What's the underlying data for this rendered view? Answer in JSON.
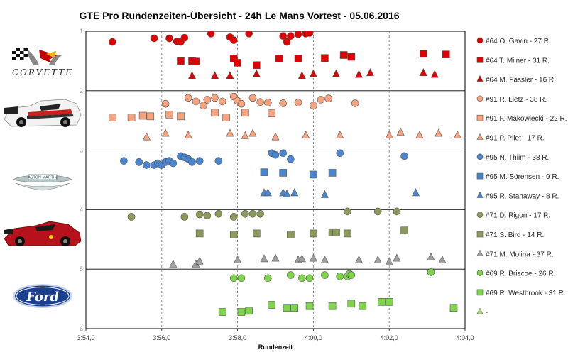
{
  "chart_data": {
    "type": "scatter",
    "title": "GTE Pro Rundenzeiten-Übersicht  - 24h Le Mans Vortest - 05.06.2016",
    "xlabel": "Rundenzeit",
    "ylabel": "",
    "xlim": [
      234,
      244
    ],
    "ylim": [
      1,
      6
    ],
    "x_ticks": [
      234,
      236,
      238,
      240,
      242,
      244
    ],
    "x_tick_labels": [
      "3:54,0",
      "3:56,0",
      "3:58,0",
      "4:00,0",
      "4:02,0",
      "4:04,0"
    ],
    "y_ticks": [
      1,
      2,
      3,
      4,
      5,
      6
    ],
    "y_tick_labels": [
      "1",
      "2",
      "3",
      "4",
      "5",
      "6"
    ],
    "grid": "vertical dashed at ticks, horizontal solid at ticks",
    "legend_position": "right",
    "team_logos": [
      {
        "team": "Corvette",
        "wordmark": "CORVETTE"
      },
      {
        "team": "Porsche",
        "wordmark": ""
      },
      {
        "team": "Aston Martin",
        "wordmark": "ASTON MARTIN"
      },
      {
        "team": "Ferrari",
        "wordmark": ""
      },
      {
        "team": "Ford",
        "wordmark": "Ford"
      }
    ],
    "series": [
      {
        "name": "#64 O. Gavin - 27 R.",
        "color": "#e00000",
        "shape": "circle",
        "x": [
          234.7,
          235.8,
          236.2,
          236.4,
          236.5,
          236.6,
          237.3,
          237.8,
          237.9,
          238.3,
          239.2,
          239.3,
          239.4,
          239.6,
          239.8,
          239.9
        ],
        "y": [
          1.18,
          1.12,
          1.12,
          1.17,
          1.18,
          1.11,
          1.04,
          1.1,
          1.15,
          1.04,
          1.08,
          1.18,
          1.08,
          1.05,
          1.04,
          1.03
        ]
      },
      {
        "name": "#64 T. Milner - 31 R.",
        "color": "#e00000",
        "shape": "square",
        "x": [
          236.5,
          236.8,
          236.9,
          237.9,
          238.0,
          238.5,
          239.1,
          239.6,
          240.3,
          240.8,
          241.0,
          242.9,
          243.5
        ],
        "y": [
          1.5,
          1.5,
          1.51,
          1.46,
          1.53,
          1.57,
          1.46,
          1.46,
          1.45,
          1.4,
          1.43,
          1.38,
          1.39
        ]
      },
      {
        "name": "#64 M. Fässler - 16 R.",
        "color": "#e00000",
        "shape": "triangle",
        "x": [
          236.8,
          237.4,
          237.8,
          238.5,
          239.7,
          240.0,
          240.6,
          241.2,
          241.5,
          242.9,
          243.2
        ],
        "y": [
          1.75,
          1.75,
          1.75,
          1.72,
          1.75,
          1.72,
          1.72,
          1.73,
          1.7,
          1.7,
          1.73
        ]
      },
      {
        "name": "#91 R. Lietz - 38 R.",
        "color": "#f5a47f",
        "shape": "circle",
        "x": [
          236.1,
          236.7,
          236.9,
          237.1,
          237.2,
          237.4,
          237.6,
          237.9,
          238.0,
          238.1,
          238.4,
          238.6,
          238.8,
          239.2,
          239.6,
          240.0,
          240.2,
          240.4,
          241.1
        ],
        "y": [
          2.22,
          2.12,
          2.18,
          2.25,
          2.15,
          2.12,
          2.18,
          2.1,
          2.17,
          2.22,
          2.12,
          2.19,
          2.2,
          2.21,
          2.2,
          2.25,
          2.15,
          2.13,
          2.21
        ]
      },
      {
        "name": "#91 F. Makowiecki - 22 R.",
        "color": "#f5a47f",
        "shape": "square",
        "x": [
          234.7,
          235.2,
          235.5,
          235.7,
          236.2,
          236.5,
          237.4,
          237.7,
          238.2,
          238.9
        ],
        "y": [
          2.45,
          2.45,
          2.42,
          2.43,
          2.4,
          2.43,
          2.37,
          2.45,
          2.37,
          2.38
        ]
      },
      {
        "name": "#91 P. Pilet - 17 R.",
        "color": "#f5a47f",
        "shape": "triangle",
        "x": [
          235.6,
          236.1,
          236.7,
          237.8,
          238.2,
          238.4,
          239.0,
          239.8,
          240.7,
          242.0,
          242.3,
          242.8,
          243.3,
          243.8
        ],
        "y": [
          2.78,
          2.72,
          2.75,
          2.72,
          2.76,
          2.72,
          2.78,
          2.75,
          2.75,
          2.75,
          2.7,
          2.75,
          2.72,
          2.75
        ]
      },
      {
        "name": "#95 N. Thiim - 38 R.",
        "color": "#4a86d0",
        "shape": "circle",
        "x": [
          235.0,
          235.4,
          235.6,
          235.8,
          235.9,
          236.0,
          236.1,
          236.2,
          236.3,
          236.5,
          236.6,
          236.7,
          236.8,
          237.0,
          237.5,
          238.9,
          239.0,
          239.2,
          239.4,
          240.7,
          242.4
        ],
        "y": [
          3.18,
          3.2,
          3.25,
          3.25,
          3.22,
          3.25,
          3.2,
          3.18,
          3.22,
          3.1,
          3.12,
          3.15,
          3.2,
          3.18,
          3.18,
          3.05,
          3.08,
          3.05,
          3.15,
          3.05,
          3.1
        ]
      },
      {
        "name": "#95 M. Sörensen - 9 R.",
        "color": "#4a86d0",
        "shape": "square",
        "x": [
          238.7,
          239.2,
          240.0,
          240.5
        ],
        "y": [
          3.37,
          3.38,
          3.41,
          3.38
        ]
      },
      {
        "name": "#95 R. Stanaway - 8 R.",
        "color": "#4a86d0",
        "shape": "triangle",
        "x": [
          238.7,
          238.8,
          239.2,
          239.3,
          239.5,
          240.3,
          242.7
        ],
        "y": [
          3.72,
          3.72,
          3.72,
          3.74,
          3.72,
          3.75,
          3.72
        ]
      },
      {
        "name": "#71 D. Rigon - 17 R.",
        "color": "#8a9a5b",
        "shape": "circle",
        "x": [
          235.2,
          236.6,
          237.0,
          237.2,
          237.5,
          237.9,
          238.2,
          238.4,
          238.6,
          240.9,
          241.7,
          242.2
        ],
        "y": [
          4.12,
          4.12,
          4.08,
          4.1,
          4.07,
          4.12,
          4.07,
          4.07,
          4.07,
          4.03,
          4.03,
          4.03
        ]
      },
      {
        "name": "#71 S. Bird - 14 R.",
        "color": "#8a9a5b",
        "shape": "square",
        "x": [
          237.0,
          237.9,
          238.5,
          239.4,
          240.0,
          240.5,
          240.6,
          240.9,
          242.4
        ],
        "y": [
          4.4,
          4.42,
          4.4,
          4.42,
          4.4,
          4.38,
          4.38,
          4.4,
          4.35
        ]
      },
      {
        "name": "#71 M. Molina - 37 R.",
        "color": "#a0a0a0",
        "shape": "triangle",
        "x": [
          236.3,
          236.9,
          237.0,
          238.0,
          238.7,
          239.0,
          239.6,
          239.7,
          240.0,
          240.3,
          241.2,
          241.7,
          242.0,
          242.2,
          243.1,
          243.4
        ],
        "y": [
          4.92,
          4.92,
          4.87,
          4.85,
          4.83,
          4.82,
          4.85,
          4.83,
          4.82,
          4.85,
          4.85,
          4.85,
          4.88,
          4.82,
          4.8,
          4.85
        ]
      },
      {
        "name": "#69 R. Briscoe - 26 R.",
        "color": "#7fd54a",
        "shape": "circle",
        "x": [
          237.9,
          238.1,
          238.8,
          239.4,
          239.7,
          239.9,
          240.3,
          240.7,
          240.9,
          240.95,
          241.0,
          243.1
        ],
        "y": [
          5.15,
          5.15,
          5.15,
          5.1,
          5.15,
          5.15,
          5.1,
          5.12,
          5.12,
          5.08,
          5.1,
          5.05
        ]
      },
      {
        "name": "#69 R. Westbrook - 31 R.",
        "color": "#7fd54a",
        "shape": "square",
        "x": [
          237.6,
          238.1,
          238.3,
          238.9,
          239.3,
          239.5,
          239.9,
          240.5,
          241.0,
          241.3,
          241.8,
          242.0,
          243.7
        ],
        "y": [
          5.72,
          5.72,
          5.7,
          5.6,
          5.65,
          5.65,
          5.62,
          5.62,
          5.58,
          5.62,
          5.55,
          5.55,
          5.65
        ]
      },
      {
        "name": "-",
        "color": "#b6d96e",
        "shape": "triangle",
        "x": [],
        "y": []
      }
    ]
  }
}
